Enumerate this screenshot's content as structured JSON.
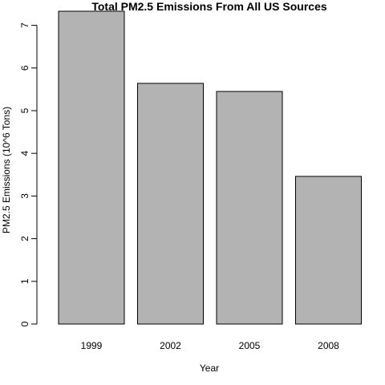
{
  "chart_data": {
    "type": "bar",
    "title": "Total PM2.5 Emissions From All US Sources",
    "xlabel": "Year",
    "ylabel": "PM2.5 Emissions (10^6 Tons)",
    "categories": [
      "1999",
      "2002",
      "2005",
      "2008"
    ],
    "values": [
      7.33,
      5.64,
      5.45,
      3.46
    ],
    "ylim": [
      0,
      7.33
    ],
    "yticks": [
      0,
      1,
      2,
      3,
      4,
      5,
      6,
      7
    ],
    "grid": false,
    "legend": "none",
    "bar_color": "#b3b3b3"
  }
}
